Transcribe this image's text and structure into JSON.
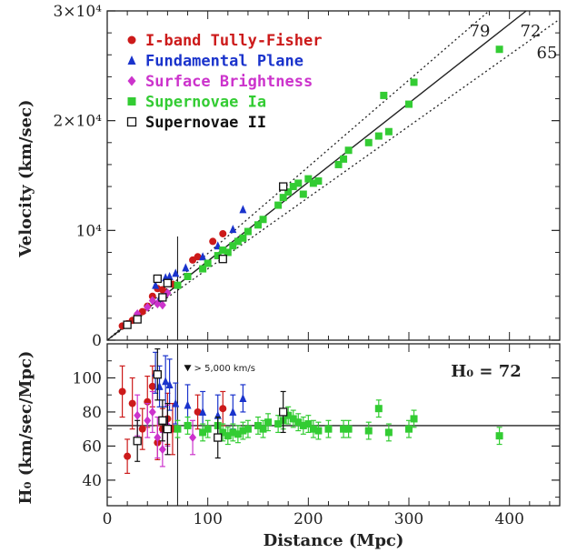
{
  "chart_data": [
    {
      "type": "scatter",
      "panel": "hubble-diagram",
      "xlim": [
        0,
        450
      ],
      "ylim": [
        0,
        30000
      ],
      "ylabel": "Velocity (km/sec)",
      "yticks": [
        {
          "value": 0,
          "label": "0"
        },
        {
          "value": 10000,
          "label": "10⁴"
        },
        {
          "value": 20000,
          "label": "2×10⁴"
        },
        {
          "value": 30000,
          "label": "3×10⁴"
        }
      ],
      "legend": {
        "position": "top-left",
        "entries": [
          {
            "series": "tf",
            "label": "I-band Tully-Fisher",
            "color": "#cc1a1a",
            "marker": "circle"
          },
          {
            "series": "fp",
            "label": "Fundamental Plane",
            "color": "#1a33cc",
            "marker": "triangle"
          },
          {
            "series": "sb",
            "label": "Surface Brightness",
            "color": "#cc33cc",
            "marker": "diamond"
          },
          {
            "series": "sn1a",
            "label": "Supernovae Ia",
            "color": "#33cc33",
            "marker": "square"
          },
          {
            "series": "sn2",
            "label": "Supernovae II",
            "color": "#111111",
            "marker": "open-square"
          }
        ]
      },
      "fit_lines": [
        {
          "h0": 72,
          "label": "72",
          "style": "solid"
        },
        {
          "h0": 79,
          "label": "79",
          "style": "dotted"
        },
        {
          "h0": 65,
          "label": "65",
          "style": "dotted"
        }
      ],
      "vline_x": 70,
      "series": [
        {
          "id": "tf",
          "color": "#cc1a1a",
          "marker": "circle",
          "points": [
            [
              15,
              1300
            ],
            [
              20,
              1500
            ],
            [
              25,
              1800
            ],
            [
              30,
              2300
            ],
            [
              35,
              2600
            ],
            [
              40,
              3100
            ],
            [
              45,
              4000
            ],
            [
              50,
              4700
            ],
            [
              55,
              4600
            ],
            [
              60,
              5200
            ],
            [
              65,
              5100
            ],
            [
              85,
              7300
            ],
            [
              90,
              7600
            ],
            [
              105,
              9000
            ],
            [
              115,
              9700
            ]
          ]
        },
        {
          "id": "fp",
          "color": "#1a33cc",
          "marker": "triangle",
          "points": [
            [
              48,
              5000
            ],
            [
              52,
              3800
            ],
            [
              58,
              5700
            ],
            [
              62,
              5800
            ],
            [
              68,
              6100
            ],
            [
              78,
              6600
            ],
            [
              95,
              7600
            ],
            [
              110,
              8600
            ],
            [
              125,
              10100
            ],
            [
              135,
              11900
            ]
          ]
        },
        {
          "id": "sb",
          "color": "#cc33cc",
          "marker": "diamond",
          "points": [
            [
              30,
              2400
            ],
            [
              40,
              3000
            ],
            [
              45,
              3600
            ],
            [
              50,
              3300
            ],
            [
              55,
              3200
            ],
            [
              60,
              4300
            ]
          ]
        },
        {
          "id": "sn1a",
          "color": "#33cc33",
          "marker": "square",
          "points": [
            [
              70,
              5000
            ],
            [
              80,
              5800
            ],
            [
              95,
              6500
            ],
            [
              100,
              7000
            ],
            [
              110,
              7700
            ],
            [
              115,
              8200
            ],
            [
              120,
              8000
            ],
            [
              125,
              8600
            ],
            [
              130,
              9000
            ],
            [
              135,
              9300
            ],
            [
              140,
              9900
            ],
            [
              150,
              10500
            ],
            [
              155,
              11000
            ],
            [
              170,
              12300
            ],
            [
              175,
              13000
            ],
            [
              180,
              13500
            ],
            [
              185,
              14000
            ],
            [
              190,
              14300
            ],
            [
              195,
              13300
            ],
            [
              200,
              14700
            ],
            [
              205,
              14300
            ],
            [
              210,
              14500
            ],
            [
              230,
              16000
            ],
            [
              235,
              16500
            ],
            [
              240,
              17300
            ],
            [
              260,
              18000
            ],
            [
              270,
              18600
            ],
            [
              275,
              22300
            ],
            [
              280,
              19000
            ],
            [
              300,
              21500
            ],
            [
              305,
              23500
            ],
            [
              390,
              26500
            ]
          ]
        },
        {
          "id": "sn2",
          "color": "#111111",
          "marker": "open-square",
          "points": [
            [
              20,
              1400
            ],
            [
              30,
              1900
            ],
            [
              50,
              5600
            ],
            [
              55,
              3900
            ],
            [
              60,
              5200
            ],
            [
              115,
              7400
            ],
            [
              175,
              14000
            ]
          ]
        }
      ]
    },
    {
      "type": "scatter",
      "panel": "h0-residuals",
      "xlim": [
        0,
        450
      ],
      "ylim": [
        25,
        120
      ],
      "xlabel": "Distance (Mpc)",
      "ylabel": "H₀ (km/sec/Mpc)",
      "xticks": [
        0,
        100,
        200,
        300,
        400
      ],
      "yticks": [
        40,
        60,
        80,
        100
      ],
      "annotation": "H₀ = 72",
      "note": "> 5,000 km/s",
      "note_x": 80,
      "note_y": 106,
      "h0_line": 72,
      "vline_x": 70,
      "series": [
        {
          "id": "tf",
          "color": "#cc1a1a",
          "marker": "circle",
          "points": [
            [
              15,
              92,
              15
            ],
            [
              20,
              54,
              10
            ],
            [
              25,
              85,
              15
            ],
            [
              35,
              70,
              12
            ],
            [
              40,
              86,
              15
            ],
            [
              45,
              95,
              12
            ],
            [
              50,
              62,
              10
            ],
            [
              55,
              70,
              12
            ],
            [
              60,
              76,
              15
            ],
            [
              65,
              70,
              15
            ],
            [
              90,
              80,
              10
            ],
            [
              115,
              82,
              10
            ]
          ]
        },
        {
          "id": "fp",
          "color": "#1a33cc",
          "marker": "triangle",
          "points": [
            [
              48,
              103,
              12
            ],
            [
              52,
              95,
              12
            ],
            [
              58,
              98,
              15
            ],
            [
              62,
              96,
              15
            ],
            [
              68,
              85,
              12
            ],
            [
              80,
              84,
              12
            ],
            [
              95,
              80,
              12
            ],
            [
              110,
              78,
              12
            ],
            [
              125,
              80,
              10
            ],
            [
              135,
              88,
              8
            ]
          ]
        },
        {
          "id": "sb",
          "color": "#cc33cc",
          "marker": "diamond",
          "points": [
            [
              30,
              78,
              12
            ],
            [
              40,
              75,
              10
            ],
            [
              45,
              80,
              12
            ],
            [
              50,
              65,
              12
            ],
            [
              55,
              58,
              10
            ],
            [
              60,
              72,
              12
            ],
            [
              85,
              65,
              10
            ]
          ]
        },
        {
          "id": "sn1a",
          "color": "#33cc33",
          "marker": "square",
          "points": [
            [
              70,
              70,
              5
            ],
            [
              80,
              72,
              5
            ],
            [
              95,
              68,
              5
            ],
            [
              100,
              70,
              5
            ],
            [
              110,
              72,
              5
            ],
            [
              115,
              68,
              5
            ],
            [
              120,
              66,
              5
            ],
            [
              125,
              68,
              5
            ],
            [
              130,
              67,
              5
            ],
            [
              135,
              69,
              5
            ],
            [
              140,
              70,
              5
            ],
            [
              150,
              72,
              5
            ],
            [
              155,
              70,
              5
            ],
            [
              160,
              74,
              5
            ],
            [
              170,
              73,
              5
            ],
            [
              175,
              75,
              5
            ],
            [
              180,
              78,
              5
            ],
            [
              185,
              76,
              5
            ],
            [
              190,
              74,
              5
            ],
            [
              195,
              72,
              5
            ],
            [
              200,
              73,
              5
            ],
            [
              205,
              70,
              5
            ],
            [
              210,
              69,
              5
            ],
            [
              220,
              70,
              5
            ],
            [
              235,
              70,
              5
            ],
            [
              240,
              70,
              5
            ],
            [
              260,
              69,
              5
            ],
            [
              270,
              82,
              5
            ],
            [
              280,
              68,
              5
            ],
            [
              300,
              70,
              5
            ],
            [
              305,
              76,
              5
            ],
            [
              390,
              66,
              5
            ]
          ]
        },
        {
          "id": "sn2",
          "color": "#111111",
          "marker": "open-square",
          "points": [
            [
              30,
              63,
              12
            ],
            [
              50,
              102,
              15
            ],
            [
              55,
              75,
              12
            ],
            [
              60,
              70,
              15
            ],
            [
              110,
              65,
              12
            ],
            [
              175,
              80,
              12
            ]
          ]
        }
      ]
    }
  ]
}
